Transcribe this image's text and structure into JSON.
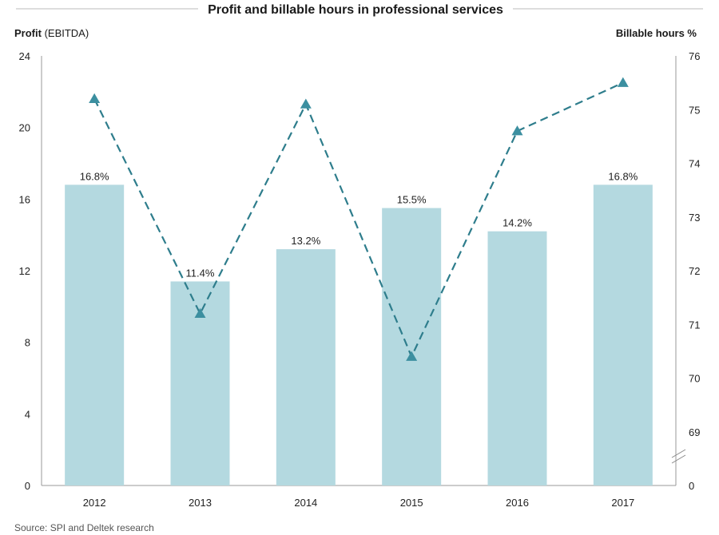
{
  "chart_data": {
    "type": "bar-line-combo",
    "title": "Profit and billable hours in professional services",
    "left_axis": {
      "label_bold": "Profit",
      "label_rest": " (EBITDA)",
      "ticks": [
        "0",
        "4",
        "8",
        "12",
        "16",
        "20",
        "24"
      ],
      "ylim": [
        0,
        24
      ]
    },
    "right_axis": {
      "label": "Billable hours %",
      "ticks": [
        "0",
        "69",
        "70",
        "71",
        "72",
        "73",
        "74",
        "75",
        "76"
      ],
      "ylim": [
        68,
        76
      ],
      "axis_break": true
    },
    "categories": [
      "2012",
      "2013",
      "2014",
      "2015",
      "2016",
      "2017"
    ],
    "bars": {
      "name": "Profit (EBITDA)",
      "values": [
        16.8,
        11.4,
        13.2,
        15.5,
        14.2,
        16.8
      ],
      "labels": [
        "16.8%",
        "11.4%",
        "13.2%",
        "15.5%",
        "14.2%",
        "16.8%"
      ],
      "color": "#b4d9e0"
    },
    "line": {
      "name": "Billable hours %",
      "values": [
        75.2,
        71.2,
        75.1,
        70.4,
        74.6,
        75.5
      ],
      "color": "#2e7d8c",
      "style": "dashed",
      "marker": "triangle",
      "marker_color": "#3c8fa0"
    },
    "source": "Source: SPI and Deltek research"
  }
}
